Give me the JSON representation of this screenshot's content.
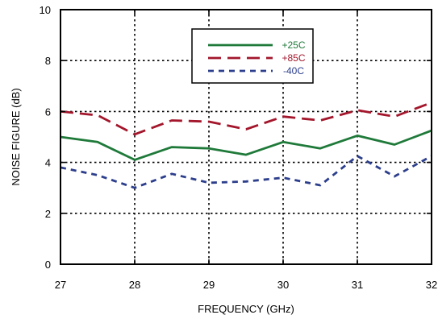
{
  "chart_data": {
    "type": "line",
    "xlabel": "FREQUENCY (GHz)",
    "ylabel": "NOISE FIGURE (dB)",
    "xlim": [
      27,
      32
    ],
    "ylim": [
      0,
      10
    ],
    "xticks": [
      "27",
      "28",
      "29",
      "30",
      "31",
      "32"
    ],
    "yticks": [
      "0",
      "2",
      "4",
      "6",
      "8",
      "10"
    ],
    "grid": true,
    "legend_position": "top-center",
    "series": [
      {
        "name": "+25C",
        "color": "#1f7a3a",
        "dash": "solid",
        "x": [
          27,
          27.5,
          28,
          28.5,
          29,
          29.5,
          30,
          30.5,
          31,
          31.5,
          32
        ],
        "y": [
          5.0,
          4.8,
          4.1,
          4.6,
          4.55,
          4.3,
          4.8,
          4.55,
          5.05,
          4.7,
          5.25
        ]
      },
      {
        "name": "+85C",
        "color": "#a3162b",
        "dash": "long",
        "x": [
          27,
          27.5,
          28,
          28.5,
          29,
          29.5,
          30,
          30.5,
          31,
          31.5,
          32
        ],
        "y": [
          6.0,
          5.85,
          5.1,
          5.65,
          5.6,
          5.3,
          5.8,
          5.65,
          6.05,
          5.8,
          6.35
        ]
      },
      {
        "name": "-40C",
        "color": "#2c3e8c",
        "dash": "short",
        "x": [
          27,
          27.5,
          28,
          28.5,
          29,
          29.5,
          30,
          30.5,
          31,
          31.5,
          32
        ],
        "y": [
          3.8,
          3.5,
          3.0,
          3.55,
          3.2,
          3.25,
          3.4,
          3.1,
          4.25,
          3.45,
          4.25
        ]
      }
    ]
  }
}
